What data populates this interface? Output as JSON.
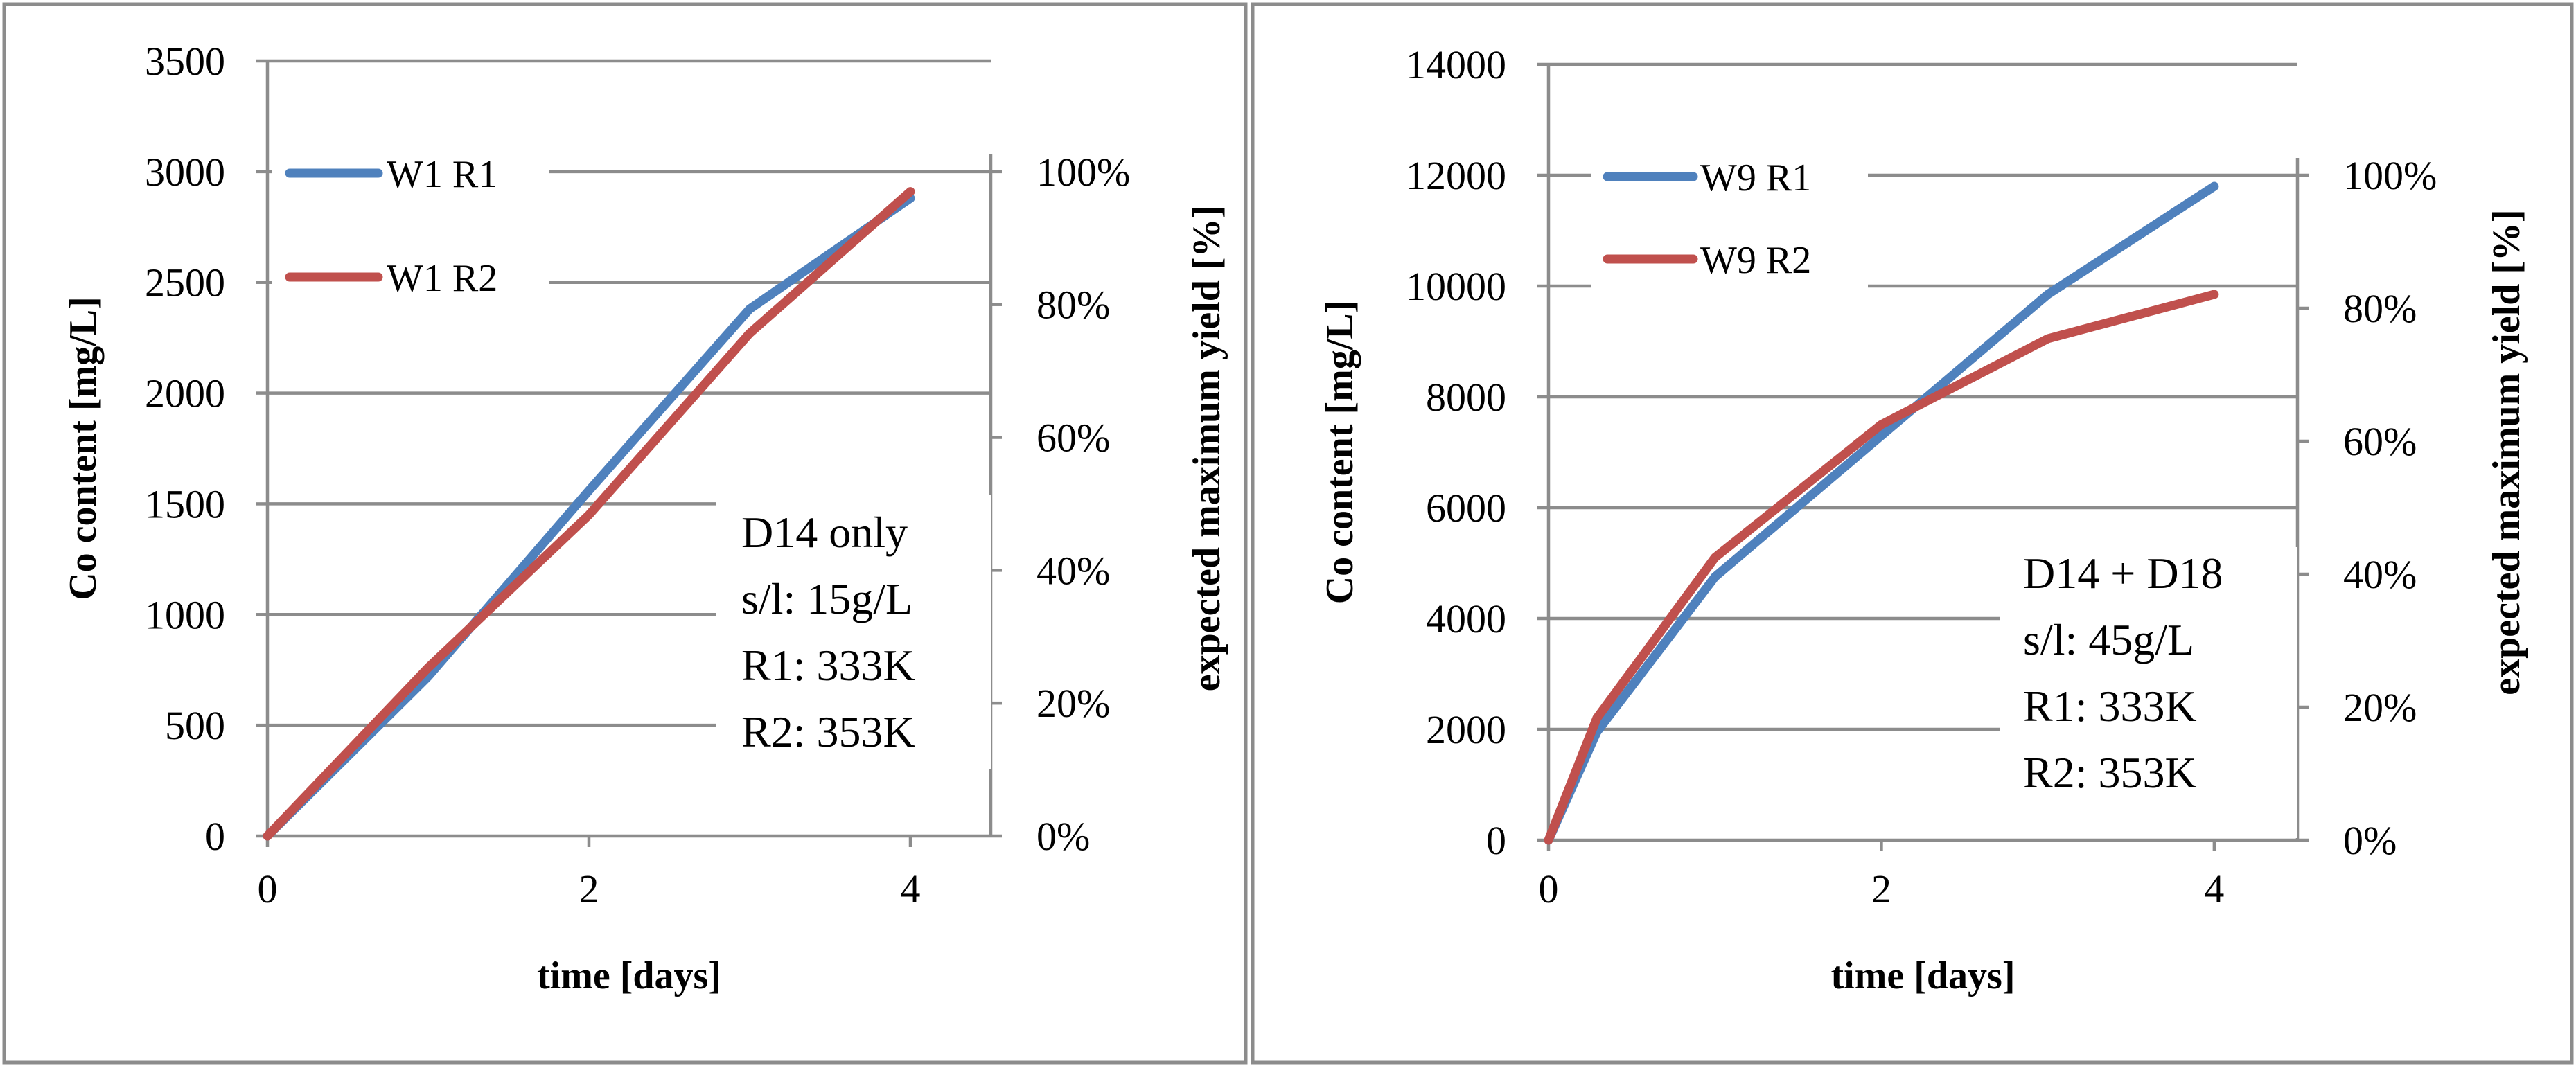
{
  "chart_data": [
    {
      "type": "line",
      "xlabel": "time [days]",
      "ylabel": "Co content [mg/L]",
      "y2label": "expected maximum yield [%]",
      "xlim": [
        0,
        4.5
      ],
      "ylim": [
        0,
        3500
      ],
      "y2lim": [
        0,
        1.166667
      ],
      "x_ticks": [
        0,
        2,
        4
      ],
      "x_tick_labels": [
        "0",
        "2",
        "4"
      ],
      "y_ticks": [
        0,
        500,
        1000,
        1500,
        2000,
        2500,
        3000,
        3500
      ],
      "y_tick_labels": [
        "0",
        "500",
        "1000",
        "1500",
        "2000",
        "2500",
        "3000",
        "3500"
      ],
      "y2_ticks": [
        0,
        0.2,
        0.4,
        0.6,
        0.8,
        1.0
      ],
      "y2_tick_labels": [
        "0%",
        "20%",
        "40%",
        "60%",
        "80%",
        "100%"
      ],
      "legend_position": "top-left",
      "series": [
        {
          "name": "W1 R1",
          "color": "#4f81bd",
          "x": [
            0,
            1,
            2,
            3,
            4
          ],
          "values": [
            0,
            720,
            1560,
            2380,
            2880
          ]
        },
        {
          "name": "W1 R2",
          "color": "#c0504d",
          "x": [
            0,
            1,
            2,
            3,
            4
          ],
          "values": [
            0,
            760,
            1450,
            2270,
            2910
          ]
        }
      ],
      "annotation": [
        "D14 only",
        "s/l: 15g/L",
        "R1: 333K",
        "R2: 353K"
      ]
    },
    {
      "type": "line",
      "xlabel": "time [days]",
      "ylabel": "Co content [mg/L]",
      "y2label": "expected maximum yield [%]",
      "xlim": [
        0,
        4.5
      ],
      "ylim": [
        0,
        14000
      ],
      "y2lim": [
        0,
        1.166667
      ],
      "x_ticks": [
        0,
        2,
        4
      ],
      "x_tick_labels": [
        "0",
        "2",
        "4"
      ],
      "y_ticks": [
        0,
        2000,
        4000,
        6000,
        8000,
        10000,
        12000,
        14000
      ],
      "y_tick_labels": [
        "0",
        "2000",
        "4000",
        "6000",
        "8000",
        "10000",
        "12000",
        "14000"
      ],
      "y2_ticks": [
        0,
        0.2,
        0.4,
        0.6,
        0.8,
        1.0
      ],
      "y2_tick_labels": [
        "0%",
        "20%",
        "40%",
        "60%",
        "80%",
        "100%"
      ],
      "legend_position": "top-left",
      "series": [
        {
          "name": "W9 R1",
          "color": "#4f81bd",
          "x": [
            0,
            0.29,
            1,
            2,
            3,
            4
          ],
          "values": [
            0,
            1950,
            4750,
            7300,
            9850,
            11800
          ]
        },
        {
          "name": "W9 R2",
          "color": "#c0504d",
          "x": [
            0,
            0.29,
            1,
            2,
            3,
            4
          ],
          "values": [
            0,
            2200,
            5100,
            7500,
            9050,
            9850
          ]
        }
      ],
      "annotation": [
        "D14 + D18",
        "s/l: 45g/L",
        "R1: 333K",
        "R2: 353K"
      ]
    }
  ]
}
